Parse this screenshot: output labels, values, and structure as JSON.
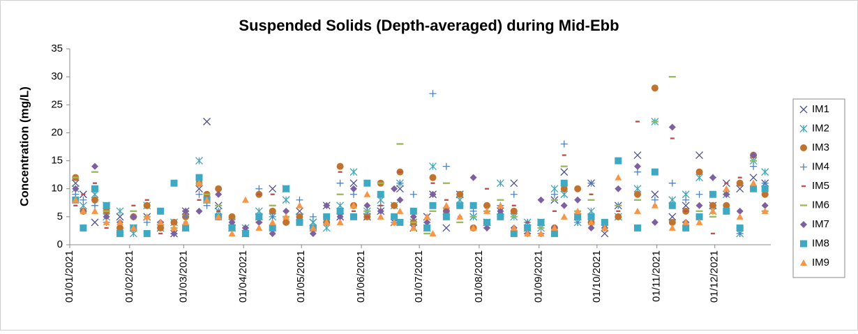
{
  "chart_data": {
    "type": "scatter",
    "title": "Suspended Solids (Depth-averaged) during Mid-Ebb",
    "y_label": "Concentration (mg/L)",
    "x": [
      "04/01/2021",
      "08/01/2021",
      "14/01/2021",
      "20/01/2021",
      "27/01/2021",
      "03/02/2021",
      "10/02/2021",
      "17/02/2021",
      "24/02/2021",
      "02/03/2021",
      "09/03/2021",
      "13/03/2021",
      "19/03/2021",
      "26/03/2021",
      "02/04/2021",
      "09/04/2021",
      "16/04/2021",
      "23/04/2021",
      "30/04/2021",
      "07/05/2021",
      "14/05/2021",
      "21/05/2021",
      "28/05/2021",
      "04/06/2021",
      "11/06/2021",
      "18/06/2021",
      "21/06/2021",
      "28/06/2021",
      "05/07/2021",
      "08/07/2021",
      "15/07/2021",
      "22/07/2021",
      "29/07/2021",
      "05/08/2021",
      "12/08/2021",
      "19/08/2021",
      "26/08/2021",
      "02/09/2021",
      "09/09/2021",
      "14/09/2021",
      "21/09/2021",
      "28/09/2021",
      "05/10/2021",
      "12/10/2021",
      "22/10/2021",
      "31/10/2021",
      "09/11/2021",
      "16/11/2021",
      "23/11/2021",
      "30/11/2021",
      "07/12/2021",
      "14/12/2021",
      "21/12/2021",
      "27/12/2021"
    ],
    "xlim": [
      "01/01/2021",
      "30/12/2021"
    ],
    "xticks": [
      "01/01/2021",
      "01/02/2021",
      "01/03/2021",
      "01/04/2021",
      "01/05/2021",
      "01/06/2021",
      "01/07/2021",
      "01/08/2021",
      "01/09/2021",
      "01/10/2021",
      "01/11/2021",
      "01/12/2021"
    ],
    "ylim": [
      0,
      35
    ],
    "yticks": [
      0,
      5,
      10,
      15,
      20,
      25,
      30,
      35
    ],
    "grid": false,
    "legend": "right",
    "series": [
      {
        "name": "IM1",
        "color": "#4d5193",
        "marker": "x",
        "values": [
          11,
          9,
          4,
          7,
          5,
          3,
          5,
          3,
          2,
          6,
          10,
          22,
          7,
          3,
          2,
          5,
          10,
          10,
          6,
          4,
          7,
          5,
          11,
          5,
          6,
          4,
          10,
          3,
          5,
          9,
          3,
          9,
          5,
          4,
          6,
          11,
          3,
          4,
          8,
          13,
          5,
          11,
          2,
          7,
          16,
          9,
          5,
          7,
          16,
          7,
          11,
          10,
          12,
          11
        ]
      },
      {
        "name": "IM2",
        "color": "#3fa7b8",
        "marker": "star",
        "values": [
          10,
          7,
          9,
          5,
          6,
          2,
          7,
          3,
          4,
          3,
          15,
          8,
          6,
          4,
          3,
          6,
          5,
          8,
          5,
          4,
          3,
          7,
          13,
          6,
          8,
          7,
          11,
          4,
          3,
          14,
          6,
          8,
          5,
          4,
          11,
          5,
          4,
          3,
          10,
          9,
          4,
          6,
          3,
          5,
          10,
          22,
          8,
          9,
          12,
          6,
          9,
          2,
          15,
          13
        ]
      },
      {
        "name": "IM3",
        "color": "#c0732f",
        "marker": "circle",
        "values": [
          12,
          6,
          8,
          6,
          3,
          5,
          7,
          3,
          4,
          5,
          11,
          9,
          10,
          5,
          2,
          9,
          6,
          4,
          5,
          3,
          4,
          14,
          7,
          5,
          11,
          7,
          13,
          4,
          3,
          12,
          6,
          9,
          3,
          7,
          5,
          6,
          3,
          4,
          3,
          10,
          10,
          4,
          4,
          5,
          9,
          28,
          4,
          6,
          13,
          7,
          7,
          11,
          16,
          9
        ]
      },
      {
        "name": "IM4",
        "color": "#4f81bd",
        "marker": "plus",
        "values": [
          9,
          8,
          7,
          4,
          2,
          5,
          4,
          6,
          2,
          5,
          9,
          7,
          5,
          3,
          3,
          10,
          5,
          5,
          8,
          5,
          4,
          11,
          9,
          6,
          7,
          4,
          11,
          9,
          4,
          27,
          14,
          7,
          6,
          3,
          7,
          9,
          4,
          2,
          9,
          18,
          4,
          11,
          3,
          7,
          13,
          8,
          11,
          8,
          9,
          12,
          6,
          2,
          14,
          11
        ]
      },
      {
        "name": "IM5",
        "color": "#c0504d",
        "marker": "dash",
        "values": [
          7,
          9,
          11,
          3,
          2,
          7,
          8,
          2,
          3,
          4,
          8,
          8,
          6,
          4,
          3,
          9,
          9,
          6,
          4,
          3,
          5,
          13,
          6,
          5,
          7,
          5,
          13,
          3,
          4,
          11,
          8,
          5,
          3,
          10,
          5,
          7,
          4,
          2,
          6,
          16,
          5,
          9,
          4,
          6,
          22,
          7,
          19,
          6,
          7,
          2,
          11,
          12,
          16,
          7
        ]
      },
      {
        "name": "IM6",
        "color": "#9bbb59",
        "marker": "longdash",
        "values": [
          12,
          6,
          13,
          6,
          2,
          6,
          5,
          4,
          3,
          6,
          11,
          9,
          7,
          3,
          2,
          4,
          7,
          5,
          4,
          3,
          5,
          9,
          5,
          6,
          11,
          5,
          18,
          4,
          2,
          6,
          11,
          4,
          5,
          6,
          8,
          5,
          2,
          3,
          8,
          14,
          6,
          8,
          4,
          7,
          8,
          22,
          30,
          4,
          6,
          5,
          9,
          3,
          15,
          6
        ]
      },
      {
        "name": "IM7",
        "color": "#7d60a0",
        "marker": "diamond",
        "values": [
          10,
          6,
          14,
          5,
          4,
          5,
          2,
          4,
          2,
          6,
          6,
          8,
          9,
          4,
          3,
          4,
          2,
          6,
          4,
          2,
          7,
          5,
          10,
          7,
          6,
          10,
          8,
          5,
          4,
          9,
          6,
          7,
          12,
          3,
          6,
          3,
          2,
          8,
          3,
          7,
          8,
          3,
          3,
          10,
          14,
          4,
          21,
          4,
          7,
          12,
          9,
          6,
          16,
          7
        ]
      },
      {
        "name": "IM8",
        "color": "#3fa9c4",
        "marker": "square",
        "values": [
          8,
          3,
          10,
          7,
          2,
          3,
          2,
          6,
          11,
          3,
          12,
          8,
          5,
          3,
          2,
          5,
          3,
          10,
          4,
          3,
          5,
          6,
          5,
          11,
          9,
          5,
          4,
          6,
          3,
          7,
          5,
          7,
          7,
          4,
          5,
          2,
          3,
          4,
          2,
          11,
          5,
          5,
          4,
          15,
          3,
          13,
          7,
          3,
          5,
          9,
          6,
          3,
          10,
          10
        ]
      },
      {
        "name": "IM9",
        "color": "#f79646",
        "marker": "triangle",
        "values": [
          8,
          6,
          6,
          4,
          4,
          3,
          5,
          4,
          3,
          4,
          11,
          8,
          5,
          2,
          8,
          3,
          4,
          5,
          7,
          3,
          4,
          4,
          7,
          9,
          5,
          4,
          6,
          3,
          5,
          2,
          7,
          5,
          3,
          6,
          7,
          3,
          2,
          2,
          3,
          5,
          6,
          4,
          3,
          12,
          6,
          7,
          3,
          4,
          4,
          6,
          10,
          5,
          11,
          6
        ]
      }
    ]
  }
}
